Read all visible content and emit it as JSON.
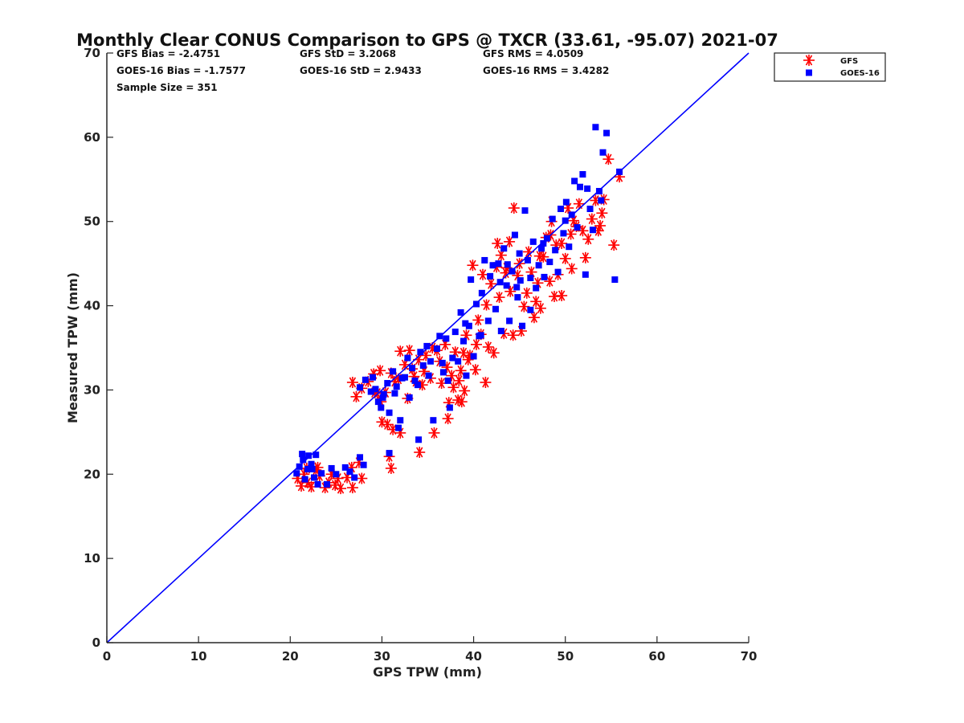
{
  "colors": {
    "gfs": "#ff0000",
    "goes": "#0000ff",
    "axis": "#262626",
    "line": "#0000ff"
  },
  "chart_data": {
    "type": "scatter",
    "title": "Monthly Clear CONUS Comparison to GPS @ TXCR (33.61, -95.07) 2021-07",
    "xlabel": "GPS TPW (mm)",
    "ylabel": "Measured TPW (mm)",
    "xlim": [
      0,
      70
    ],
    "ylim": [
      0,
      70
    ],
    "xticks": [
      "0",
      "10",
      "20",
      "30",
      "40",
      "50",
      "60",
      "70"
    ],
    "yticks": [
      "0",
      "10",
      "20",
      "30",
      "40",
      "50",
      "60",
      "70"
    ],
    "grid": false,
    "legend_position": "outside top-right",
    "reference_line": {
      "x": [
        0,
        70
      ],
      "y": [
        0,
        70
      ]
    },
    "stats": {
      "gfs_bias": "GFS Bias = -2.4751",
      "gfs_std": "GFS StD = 3.2068",
      "gfs_rms": "GFS RMS = 4.0509",
      "goes_bias": "GOES-16 Bias = -1.7577",
      "goes_std": "GOES-16 StD = 2.9433",
      "goes_rms": "GOES-16 RMS = 3.4282",
      "sample_size": "Sample Size = 351"
    },
    "series": [
      {
        "name": "GFS",
        "marker": "asterisk",
        "points": [
          [
            20.8,
            19.5
          ],
          [
            21.2,
            18.6
          ],
          [
            21.5,
            20.0
          ],
          [
            21.9,
            19.0
          ],
          [
            22.3,
            18.5
          ],
          [
            22.8,
            20.5
          ],
          [
            23.2,
            19.8
          ],
          [
            23.8,
            18.4
          ],
          [
            24.2,
            19.0
          ],
          [
            24.9,
            18.7
          ],
          [
            25.5,
            18.3
          ],
          [
            26.2,
            19.6
          ],
          [
            26.8,
            18.4
          ],
          [
            27.5,
            21.4
          ],
          [
            27.8,
            19.5
          ],
          [
            26.7,
            20.8
          ],
          [
            21.8,
            20.7
          ],
          [
            23.0,
            20.8
          ],
          [
            24.5,
            20.0
          ],
          [
            25.2,
            19.5
          ],
          [
            26.8,
            30.9
          ],
          [
            27.2,
            29.2
          ],
          [
            27.8,
            30.2
          ],
          [
            28.5,
            31.0
          ],
          [
            29.1,
            31.9
          ],
          [
            29.8,
            32.3
          ],
          [
            29.5,
            29.6
          ],
          [
            29.9,
            28.6
          ],
          [
            30.0,
            26.2
          ],
          [
            30.6,
            25.9
          ],
          [
            31.2,
            25.3
          ],
          [
            32.0,
            24.9
          ],
          [
            30.8,
            22.1
          ],
          [
            31.0,
            20.7
          ],
          [
            31.0,
            32.0
          ],
          [
            31.4,
            31.0
          ],
          [
            32.0,
            34.6
          ],
          [
            32.5,
            33.0
          ],
          [
            33.0,
            34.7
          ],
          [
            33.3,
            32.5
          ],
          [
            32.8,
            29.0
          ],
          [
            33.7,
            31.0
          ],
          [
            34.0,
            33.6
          ],
          [
            34.4,
            30.6
          ],
          [
            34.6,
            32.2
          ],
          [
            34.1,
            22.6
          ],
          [
            35.3,
            31.4
          ],
          [
            35.7,
            24.9
          ],
          [
            36.0,
            34.7
          ],
          [
            36.5,
            30.8
          ],
          [
            36.9,
            35.4
          ],
          [
            37.1,
            32.7
          ],
          [
            37.3,
            28.5
          ],
          [
            37.2,
            26.6
          ],
          [
            37.6,
            31.7
          ],
          [
            38.0,
            34.5
          ],
          [
            38.3,
            28.8
          ],
          [
            38.6,
            32.3
          ],
          [
            38.9,
            34.4
          ],
          [
            39.2,
            36.5
          ],
          [
            39.0,
            29.9
          ],
          [
            38.7,
            28.6
          ],
          [
            39.6,
            34.1
          ],
          [
            39.9,
            44.8
          ],
          [
            40.2,
            32.4
          ],
          [
            40.5,
            38.3
          ],
          [
            40.8,
            36.6
          ],
          [
            41.0,
            43.7
          ],
          [
            41.3,
            30.9
          ],
          [
            41.6,
            35.1
          ],
          [
            41.9,
            42.6
          ],
          [
            42.2,
            34.4
          ],
          [
            42.5,
            44.6
          ],
          [
            42.6,
            47.4
          ],
          [
            43.0,
            46.0
          ],
          [
            43.3,
            36.7
          ],
          [
            43.6,
            44.5
          ],
          [
            43.9,
            47.6
          ],
          [
            44.0,
            41.7
          ],
          [
            44.3,
            36.5
          ],
          [
            44.4,
            51.6
          ],
          [
            44.8,
            43.6
          ],
          [
            45.0,
            45.0
          ],
          [
            45.2,
            37.0
          ],
          [
            45.5,
            39.9
          ],
          [
            45.8,
            41.5
          ],
          [
            46.0,
            46.4
          ],
          [
            46.3,
            44.0
          ],
          [
            46.6,
            38.6
          ],
          [
            46.8,
            40.5
          ],
          [
            47.0,
            42.7
          ],
          [
            47.3,
            39.7
          ],
          [
            47.6,
            45.8
          ],
          [
            47.9,
            48.1
          ],
          [
            48.3,
            42.9
          ],
          [
            48.5,
            50.0
          ],
          [
            48.8,
            41.1
          ],
          [
            49.0,
            47.2
          ],
          [
            49.2,
            43.7
          ],
          [
            49.6,
            47.4
          ],
          [
            50.0,
            45.6
          ],
          [
            50.3,
            51.6
          ],
          [
            50.6,
            48.5
          ],
          [
            50.9,
            50.1
          ],
          [
            51.2,
            49.4
          ],
          [
            51.5,
            52.1
          ],
          [
            51.9,
            48.9
          ],
          [
            52.2,
            45.7
          ],
          [
            52.5,
            47.9
          ],
          [
            52.9,
            50.3
          ],
          [
            53.3,
            52.5
          ],
          [
            53.6,
            48.9
          ],
          [
            54.0,
            51.0
          ],
          [
            54.2,
            52.6
          ],
          [
            54.7,
            57.4
          ],
          [
            55.3,
            47.2
          ],
          [
            55.9,
            55.3
          ],
          [
            53.8,
            49.5
          ],
          [
            50.7,
            44.4
          ],
          [
            49.6,
            41.2
          ],
          [
            48.4,
            48.4
          ],
          [
            47.2,
            45.9
          ],
          [
            43.5,
            43.9
          ],
          [
            42.8,
            41.0
          ],
          [
            41.4,
            40.1
          ],
          [
            40.3,
            35.4
          ],
          [
            39.4,
            33.6
          ],
          [
            38.4,
            31.1
          ],
          [
            37.8,
            30.3
          ],
          [
            36.3,
            33.4
          ],
          [
            35.5,
            35.0
          ],
          [
            34.8,
            34.1
          ],
          [
            33.5,
            31.6
          ],
          [
            31.8,
            31.3
          ],
          [
            30.4,
            29.7
          ],
          [
            29.2,
            29.7
          ]
        ]
      },
      {
        "name": "GOES-16",
        "marker": "square",
        "points": [
          [
            20.7,
            20.1
          ],
          [
            21.0,
            20.9
          ],
          [
            21.3,
            22.4
          ],
          [
            21.6,
            19.4
          ],
          [
            22.0,
            22.2
          ],
          [
            22.3,
            21.2
          ],
          [
            22.6,
            19.6
          ],
          [
            23.0,
            18.8
          ],
          [
            23.4,
            20.1
          ],
          [
            24.0,
            18.8
          ],
          [
            25.0,
            20.0
          ],
          [
            26.5,
            20.3
          ],
          [
            27.0,
            19.6
          ],
          [
            27.6,
            22.0
          ],
          [
            28.0,
            21.1
          ],
          [
            21.4,
            21.7
          ],
          [
            22.8,
            22.3
          ],
          [
            21.9,
            20.6
          ],
          [
            27.6,
            30.3
          ],
          [
            28.2,
            31.2
          ],
          [
            28.8,
            29.8
          ],
          [
            29.0,
            31.5
          ],
          [
            29.6,
            28.6
          ],
          [
            29.9,
            27.9
          ],
          [
            30.2,
            29.5
          ],
          [
            30.6,
            30.8
          ],
          [
            30.8,
            27.3
          ],
          [
            30.8,
            22.5
          ],
          [
            31.2,
            32.2
          ],
          [
            31.6,
            30.4
          ],
          [
            31.8,
            25.5
          ],
          [
            32.0,
            26.4
          ],
          [
            32.5,
            31.5
          ],
          [
            32.8,
            33.8
          ],
          [
            33.0,
            29.1
          ],
          [
            33.3,
            32.6
          ],
          [
            33.6,
            31.1
          ],
          [
            34.0,
            24.1
          ],
          [
            34.2,
            34.5
          ],
          [
            34.5,
            32.9
          ],
          [
            34.9,
            35.2
          ],
          [
            35.3,
            33.4
          ],
          [
            35.6,
            26.4
          ],
          [
            36.0,
            34.9
          ],
          [
            36.3,
            36.4
          ],
          [
            36.7,
            32.1
          ],
          [
            37.0,
            36.1
          ],
          [
            37.2,
            31.1
          ],
          [
            37.4,
            27.9
          ],
          [
            37.7,
            33.8
          ],
          [
            38.0,
            36.9
          ],
          [
            38.3,
            33.4
          ],
          [
            38.6,
            39.2
          ],
          [
            38.9,
            35.8
          ],
          [
            39.2,
            31.7
          ],
          [
            39.5,
            37.6
          ],
          [
            39.7,
            43.1
          ],
          [
            40.0,
            34.0
          ],
          [
            40.3,
            40.2
          ],
          [
            40.6,
            36.4
          ],
          [
            40.9,
            41.5
          ],
          [
            41.2,
            45.4
          ],
          [
            41.6,
            38.2
          ],
          [
            41.8,
            43.5
          ],
          [
            42.1,
            44.8
          ],
          [
            42.4,
            39.6
          ],
          [
            42.7,
            45.0
          ],
          [
            43.0,
            37.0
          ],
          [
            43.3,
            46.8
          ],
          [
            43.6,
            42.4
          ],
          [
            43.9,
            38.2
          ],
          [
            44.2,
            44.1
          ],
          [
            44.5,
            48.4
          ],
          [
            44.8,
            41.0
          ],
          [
            45.1,
            43.0
          ],
          [
            45.3,
            37.6
          ],
          [
            45.6,
            51.3
          ],
          [
            45.9,
            45.4
          ],
          [
            46.2,
            39.5
          ],
          [
            46.5,
            47.6
          ],
          [
            46.8,
            42.1
          ],
          [
            47.1,
            44.8
          ],
          [
            47.4,
            46.8
          ],
          [
            47.7,
            43.4
          ],
          [
            48.0,
            48.0
          ],
          [
            48.3,
            45.2
          ],
          [
            48.6,
            50.3
          ],
          [
            48.9,
            46.6
          ],
          [
            49.2,
            44.0
          ],
          [
            49.5,
            51.5
          ],
          [
            49.8,
            48.6
          ],
          [
            50.1,
            52.3
          ],
          [
            50.4,
            47.0
          ],
          [
            50.7,
            50.8
          ],
          [
            51.0,
            54.8
          ],
          [
            51.3,
            49.3
          ],
          [
            51.6,
            54.1
          ],
          [
            51.9,
            55.6
          ],
          [
            52.2,
            43.7
          ],
          [
            52.4,
            53.9
          ],
          [
            52.7,
            51.5
          ],
          [
            53.0,
            49.0
          ],
          [
            53.3,
            61.2
          ],
          [
            53.7,
            53.6
          ],
          [
            54.1,
            58.2
          ],
          [
            54.5,
            60.5
          ],
          [
            55.4,
            43.1
          ],
          [
            55.9,
            55.9
          ],
          [
            53.9,
            52.5
          ],
          [
            50.0,
            50.1
          ],
          [
            47.6,
            47.4
          ],
          [
            45.0,
            46.2
          ],
          [
            43.7,
            44.9
          ],
          [
            42.9,
            42.8
          ],
          [
            44.7,
            42.2
          ],
          [
            46.2,
            43.3
          ],
          [
            40.8,
            36.5
          ],
          [
            39.1,
            37.9
          ],
          [
            36.6,
            33.2
          ],
          [
            35.1,
            31.7
          ],
          [
            33.9,
            30.6
          ],
          [
            32.2,
            31.4
          ],
          [
            31.4,
            29.6
          ],
          [
            30.1,
            29.1
          ],
          [
            29.3,
            30.1
          ],
          [
            24.5,
            20.7
          ],
          [
            26.0,
            20.8
          ],
          [
            22.4,
            20.6
          ]
        ]
      }
    ]
  }
}
